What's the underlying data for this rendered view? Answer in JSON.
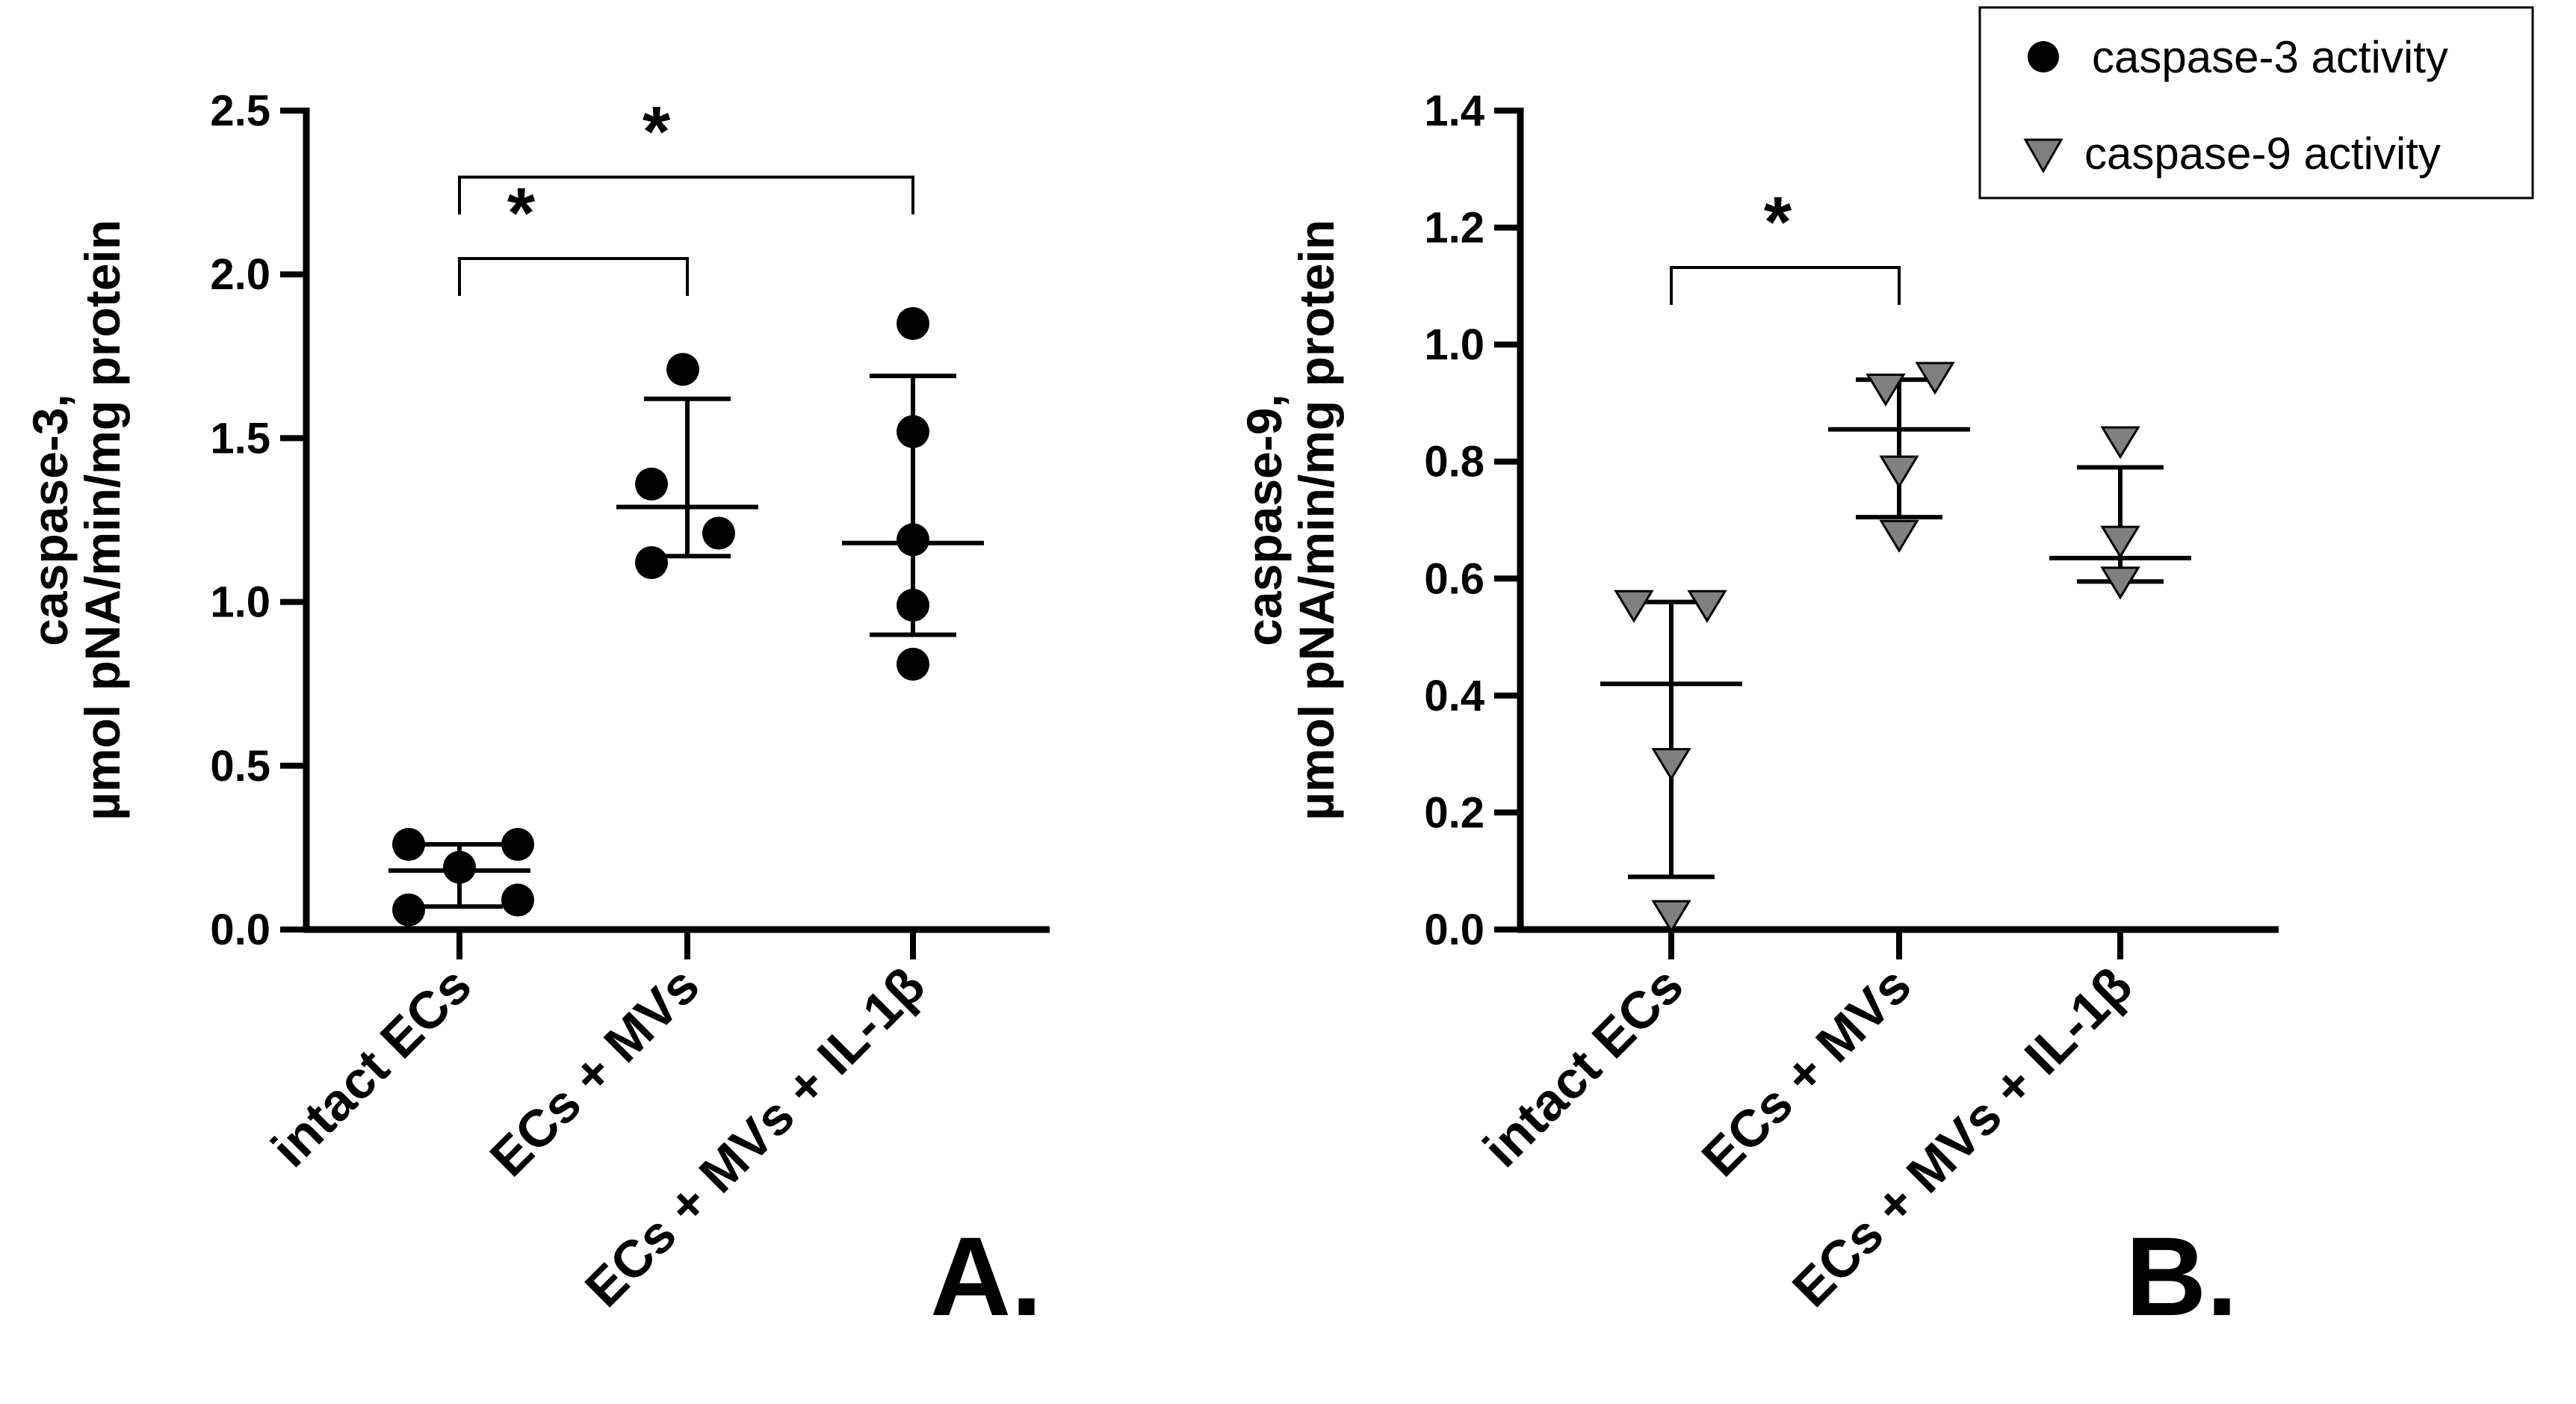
{
  "legend": {
    "items": [
      {
        "label": "caspase-3 activity",
        "marker": "circle",
        "color": "#000000"
      },
      {
        "label": "caspase-9 activity",
        "marker": "triangle-down",
        "color": "#808080"
      }
    ]
  },
  "chart_data": [
    {
      "type": "scatter",
      "panel": "A.",
      "ylabel": [
        "caspase-3,",
        "µmol pNA/min/mg protein"
      ],
      "ylim": [
        0,
        2.5
      ],
      "yticks": [
        "0.0",
        "0.5",
        "1.0",
        "1.5",
        "2.0",
        "2.5"
      ],
      "categories": [
        "intact  ECs",
        "ECs + MVs",
        "ECs + MVs + IL-1β"
      ],
      "marker": "circle",
      "color": "#000000",
      "groups": [
        {
          "category": "intact  ECs",
          "points": [
            0.26,
            0.06,
            0.19,
            0.26,
            0.09
          ],
          "mean": 0.18,
          "sd": [
            0.07,
            0.26
          ]
        },
        {
          "category": "ECs + MVs",
          "points": [
            1.71,
            1.36,
            1.21,
            1.12
          ],
          "mean": 1.29,
          "sd": [
            1.14,
            1.62
          ]
        },
        {
          "category": "ECs + MVs + IL-1β",
          "points": [
            1.85,
            1.52,
            1.19,
            0.99,
            0.81
          ],
          "mean": 1.18,
          "sd": [
            0.9,
            1.69
          ]
        }
      ],
      "significance": [
        {
          "from": 0,
          "to": 1,
          "label": "*"
        },
        {
          "from": 0,
          "to": 2,
          "label": "*"
        }
      ]
    },
    {
      "type": "scatter",
      "panel": "B.",
      "ylabel": [
        "caspase-9,",
        "µmol pNA/min/mg protein"
      ],
      "ylim": [
        0,
        1.4
      ],
      "yticks": [
        "0.0",
        "0.2",
        "0.4",
        "0.6",
        "0.8",
        "1.0",
        "1.2",
        "1.4"
      ],
      "categories": [
        "intact  ECs",
        "ECs + MVs",
        "ECs + MVs + IL-1β"
      ],
      "marker": "triangle-down",
      "color": "#808080",
      "groups": [
        {
          "category": "intact  ECs",
          "points": [
            0.56,
            0.56,
            0.29,
            0.03
          ],
          "mean": 0.42,
          "sd": [
            0.09,
            0.56
          ]
        },
        {
          "category": "ECs + MVs",
          "points": [
            0.93,
            0.95,
            0.79,
            0.68
          ],
          "mean": 0.855,
          "sd": [
            0.705,
            0.94
          ]
        },
        {
          "category": "ECs + MVs + IL-1β",
          "points": [
            0.84,
            0.67,
            0.6,
            0.6
          ],
          "mean": 0.635,
          "sd": [
            0.595,
            0.79
          ]
        }
      ],
      "significance": [
        {
          "from": 0,
          "to": 1,
          "label": "*"
        }
      ]
    }
  ]
}
